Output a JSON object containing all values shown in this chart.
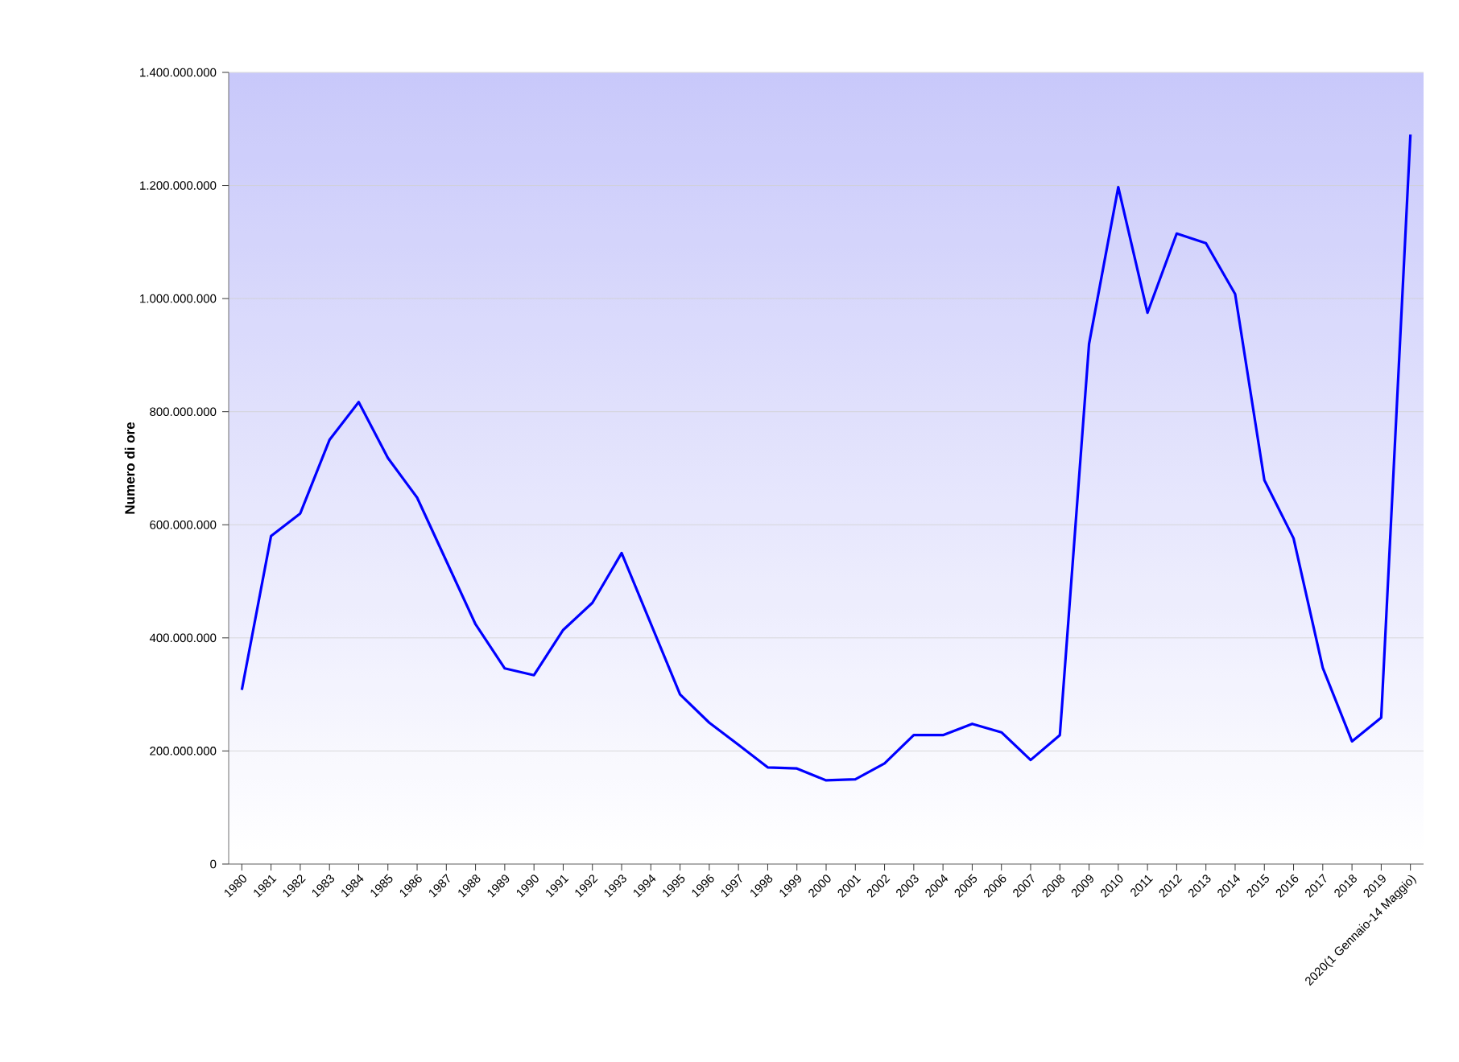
{
  "chart_data": {
    "type": "line",
    "ylabel": "Numero di ore",
    "categories": [
      "1980",
      "1981",
      "1982",
      "1983",
      "1984",
      "1985",
      "1986",
      "1987",
      "1988",
      "1989",
      "1990",
      "1991",
      "1992",
      "1993",
      "1994",
      "1995",
      "1996",
      "1997",
      "1998",
      "1999",
      "2000",
      "2001",
      "2002",
      "2003",
      "2004",
      "2005",
      "2006",
      "2007",
      "2008",
      "2009",
      "2010",
      "2011",
      "2012",
      "2013",
      "2014",
      "2015",
      "2016",
      "2017",
      "2018",
      "2019",
      "2020(1 Gennaio-14 Maggio)"
    ],
    "series": [
      {
        "color": "#0000ff",
        "values": [
          308000000,
          580000000,
          620000000,
          750000000,
          817000000,
          718000000,
          648000000,
          536000000,
          424000000,
          346000000,
          334000000,
          414000000,
          462000000,
          550000000,
          425000000,
          300000000,
          250000000,
          211000000,
          171000000,
          169000000,
          148000000,
          150000000,
          178000000,
          228000000,
          228000000,
          248000000,
          233000000,
          184000000,
          228000000,
          920000000,
          1197000000,
          975000000,
          1115000000,
          1098000000,
          1008000000,
          679000000,
          576000000,
          347000000,
          217000000,
          259000000,
          1290000000
        ]
      }
    ],
    "ylim": [
      0,
      1400000000
    ],
    "yticks": [
      0,
      {
        "value": 200000000,
        "label": "200.000.000"
      },
      {
        "value": 400000000,
        "label": "400.000.000"
      },
      {
        "value": 600000000,
        "label": "600.000.000"
      },
      {
        "value": 800000000,
        "label": "800.000.000"
      },
      {
        "value": 1000000000,
        "label": "1.000.000.000"
      },
      {
        "value": 1200000000,
        "label": "1.200.000.000"
      },
      {
        "value": 1400000000,
        "label": "1.400.000.000"
      }
    ],
    "grid": "y",
    "marker": "none",
    "line_style": "solid"
  }
}
